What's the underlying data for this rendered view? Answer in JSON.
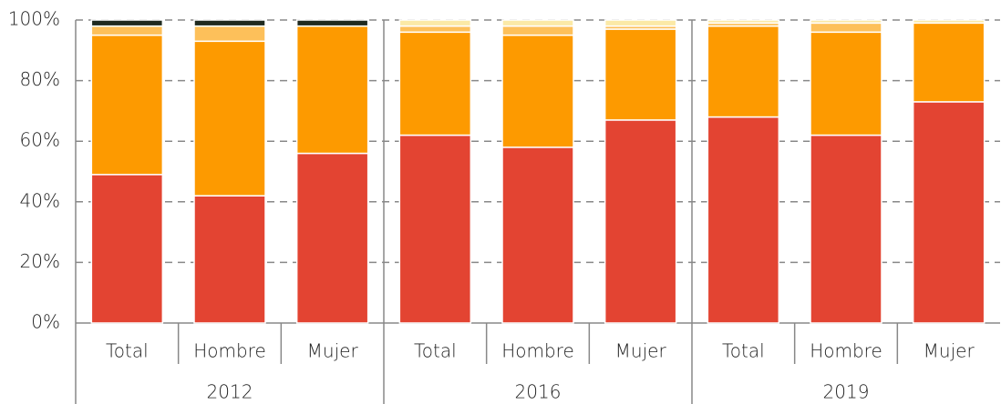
{
  "chart_data": {
    "type": "stacked_bar",
    "categories": [
      "Total",
      "Hombre",
      "Mujer",
      "Total",
      "Hombre",
      "Mujer",
      "Total",
      "Hombre",
      "Mujer"
    ],
    "groups": [
      {
        "label": "2012",
        "size": 3
      },
      {
        "label": "2016",
        "size": 3
      },
      {
        "label": "2019",
        "size": 3
      }
    ],
    "series": [
      {
        "color": "#e34432",
        "values": [
          49,
          42,
          56,
          62,
          58,
          67,
          68,
          62,
          73
        ]
      },
      {
        "color": "#fd9a00",
        "values": [
          46,
          51,
          42,
          34,
          37,
          30,
          30,
          34,
          26
        ]
      },
      {
        "color": "#fdc05a",
        "values": [
          3,
          5,
          0,
          2,
          3,
          1,
          1,
          3,
          0
        ]
      },
      {
        "color": "#fbe9a6",
        "values": [
          0,
          0,
          0,
          2,
          2,
          2,
          1,
          1,
          1
        ]
      },
      {
        "color": "#1f2a1f",
        "values": [
          2,
          2,
          2,
          0,
          0,
          0,
          0,
          0,
          0
        ]
      }
    ],
    "ylim": [
      0,
      100
    ],
    "yticks": [
      {
        "value": 0,
        "label": "0%"
      },
      {
        "value": 20,
        "label": "20%"
      },
      {
        "value": 40,
        "label": "40%"
      },
      {
        "value": 60,
        "label": "60%"
      },
      {
        "value": 80,
        "label": "80%"
      },
      {
        "value": 100,
        "label": "100%"
      }
    ],
    "grid": true
  }
}
